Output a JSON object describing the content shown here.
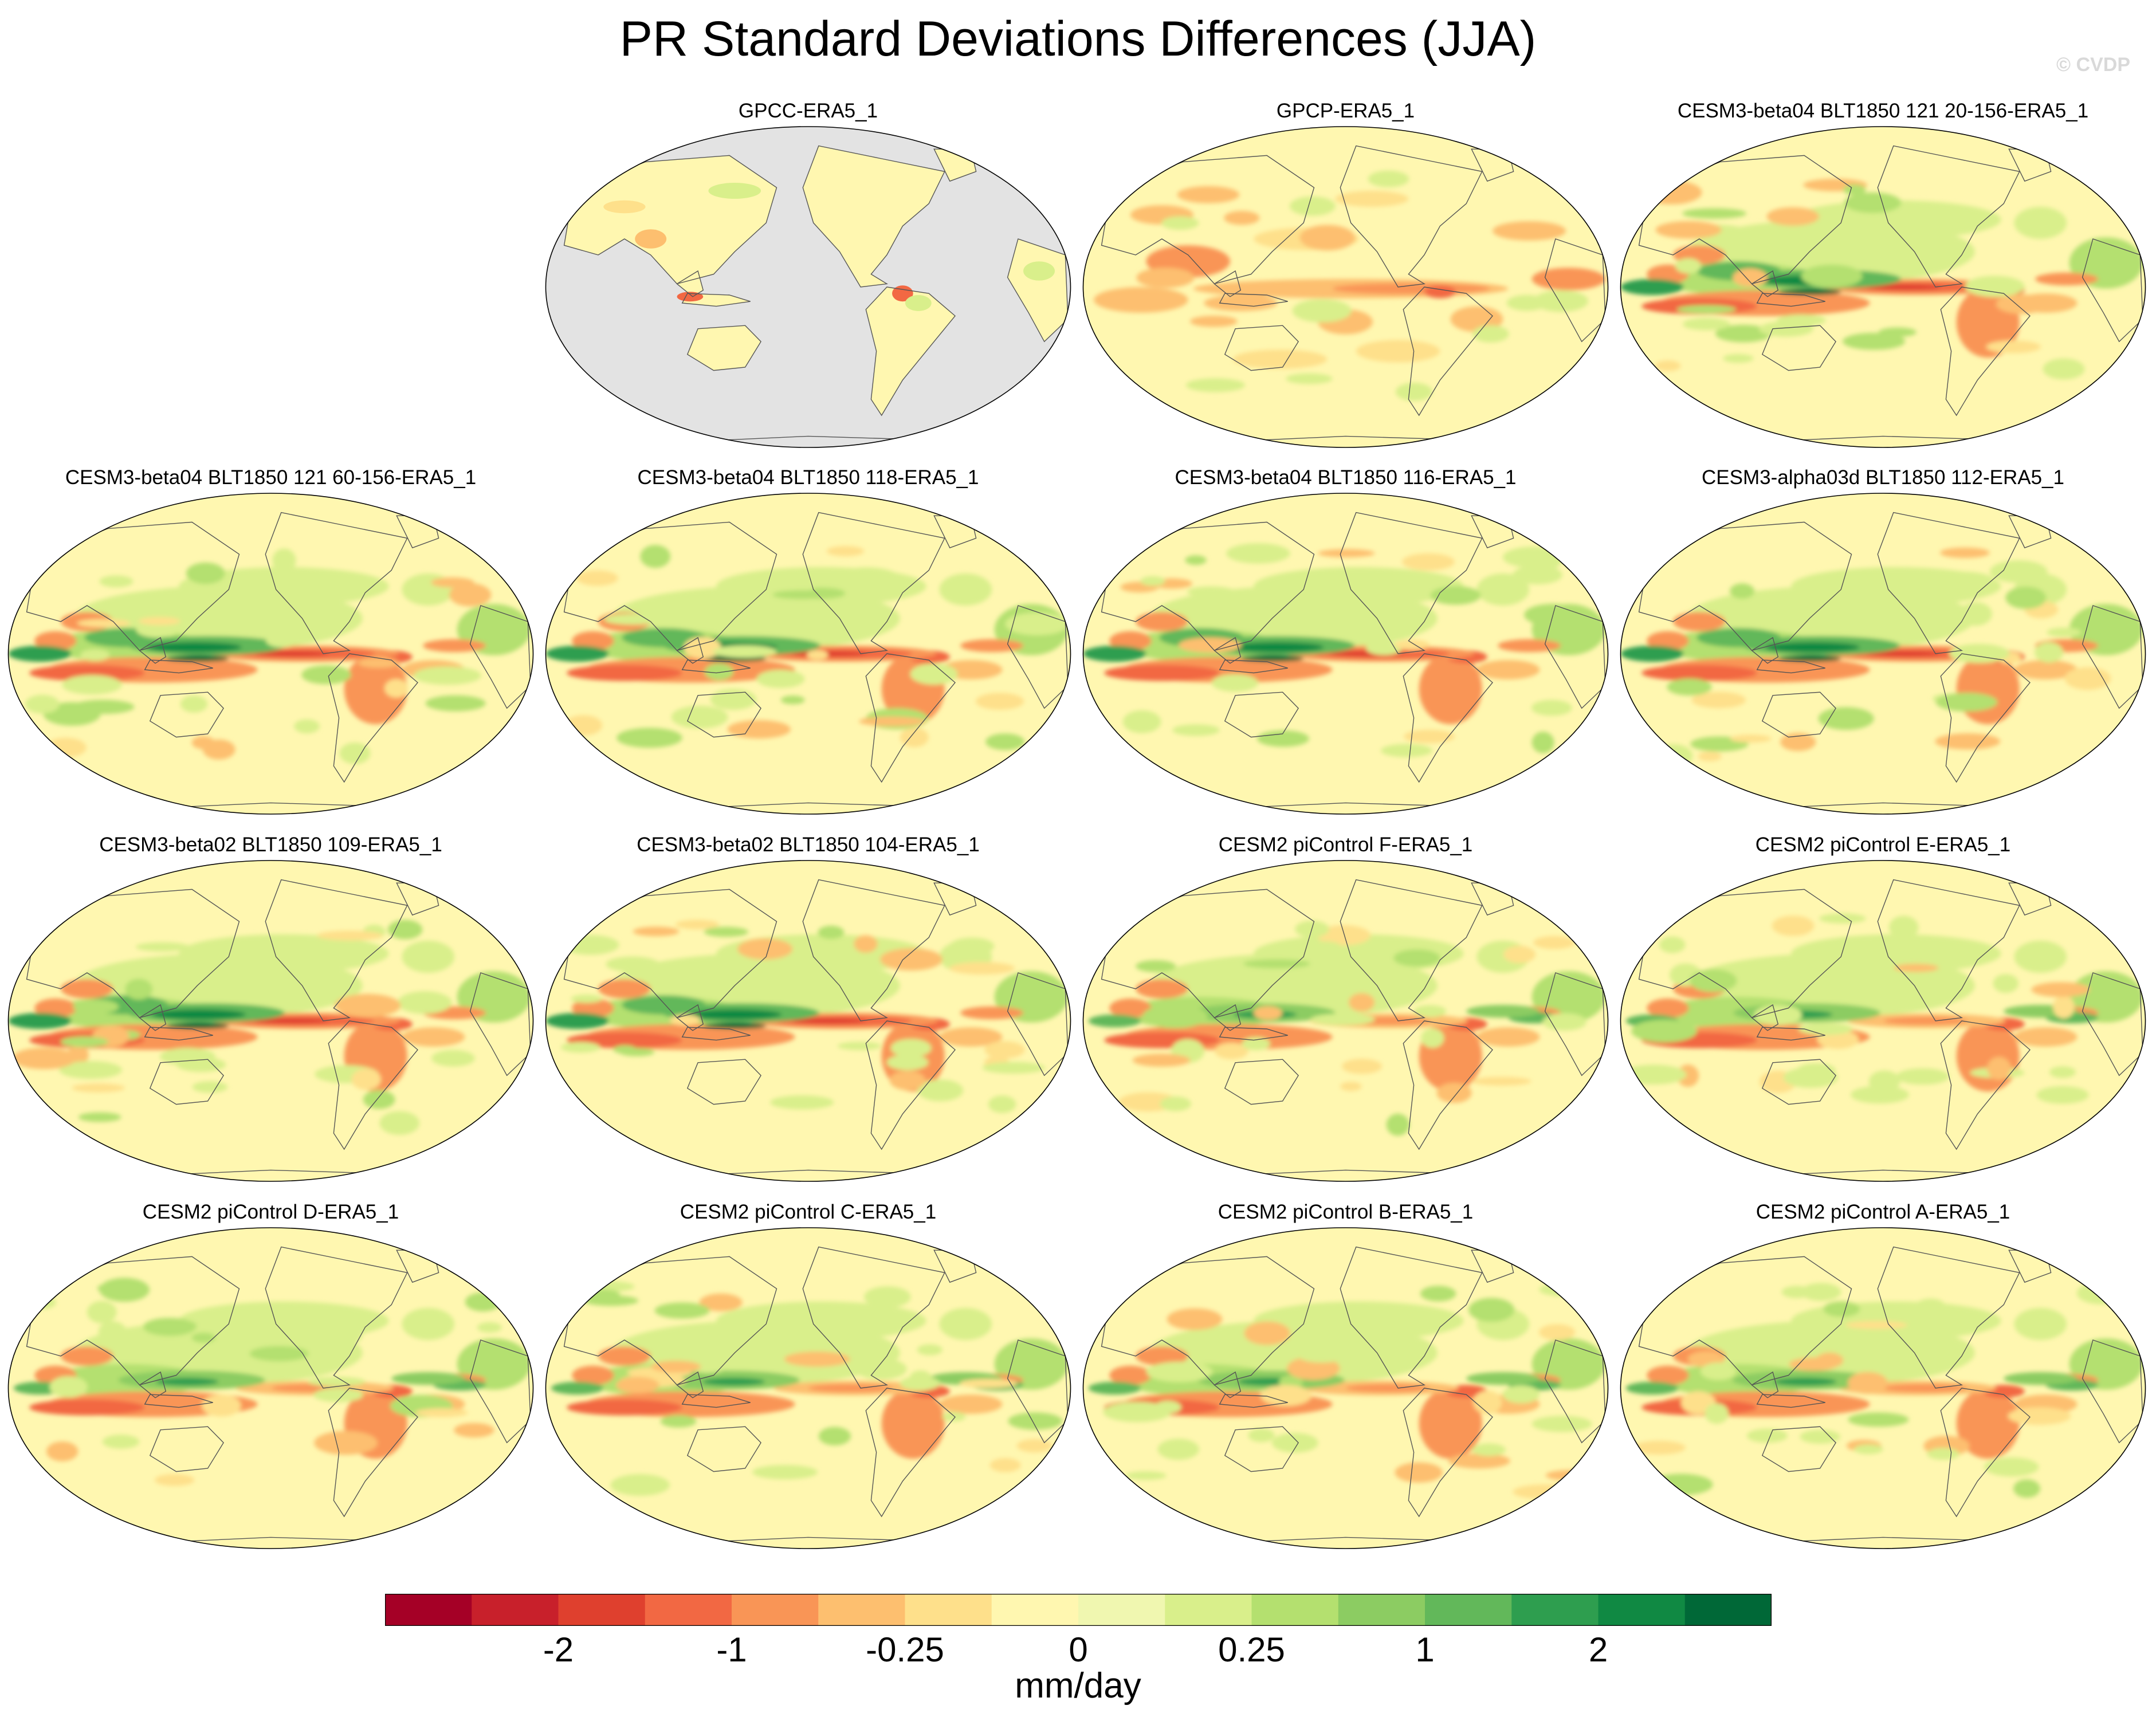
{
  "title": "PR Standard Deviations Differences (JJA)",
  "watermark": "© CVDP",
  "chart_data": {
    "type": "heatmap",
    "title": "PR Standard Deviations Differences (JJA)",
    "projection": "robinson-pacific-centered",
    "colorbar": {
      "units": "mm/day",
      "levels": [
        -2,
        -1,
        -0.25,
        0,
        0.25,
        1,
        2
      ],
      "tick_labels": [
        "-2",
        "-1",
        "-0.25",
        "0",
        "0.25",
        "1",
        "2"
      ],
      "colors": [
        "#a50026",
        "#c8202b",
        "#df402e",
        "#f26843",
        "#f99556",
        "#fdbf6f",
        "#fee08b",
        "#fff7b0",
        "#f0f7b0",
        "#d9ef8b",
        "#b4e06f",
        "#8ccc62",
        "#62b85a",
        "#2e9e4f",
        "#108943",
        "#006837"
      ]
    },
    "panels": [
      {
        "title": "GPCC-ERA5_1",
        "style": "gpcc"
      },
      {
        "title": "GPCP-ERA5_1",
        "style": "gpcp"
      },
      {
        "title": "CESM3-beta04 BLT1850 121 20-156-ERA5_1",
        "style": "model-strong"
      },
      {
        "title": "CESM3-beta04 BLT1850 121 60-156-ERA5_1",
        "style": "model-strong"
      },
      {
        "title": "CESM3-beta04 BLT1850 118-ERA5_1",
        "style": "model-strong"
      },
      {
        "title": "CESM3-beta04 BLT1850 116-ERA5_1",
        "style": "model-strong"
      },
      {
        "title": "CESM3-alpha03d BLT1850 112-ERA5_1",
        "style": "model-strong"
      },
      {
        "title": "CESM3-beta02 BLT1850 109-ERA5_1",
        "style": "model-strong"
      },
      {
        "title": "CESM3-beta02 BLT1850 104-ERA5_1",
        "style": "model-strong"
      },
      {
        "title": "CESM2 piControl F-ERA5_1",
        "style": "model-mild"
      },
      {
        "title": "CESM2 piControl E-ERA5_1",
        "style": "model-mild"
      },
      {
        "title": "CESM2 piControl D-ERA5_1",
        "style": "model-mild"
      },
      {
        "title": "CESM2 piControl C-ERA5_1",
        "style": "model-mild"
      },
      {
        "title": "CESM2 piControl B-ERA5_1",
        "style": "model-mild"
      },
      {
        "title": "CESM2 piControl A-ERA5_1",
        "style": "model-mild"
      }
    ]
  }
}
